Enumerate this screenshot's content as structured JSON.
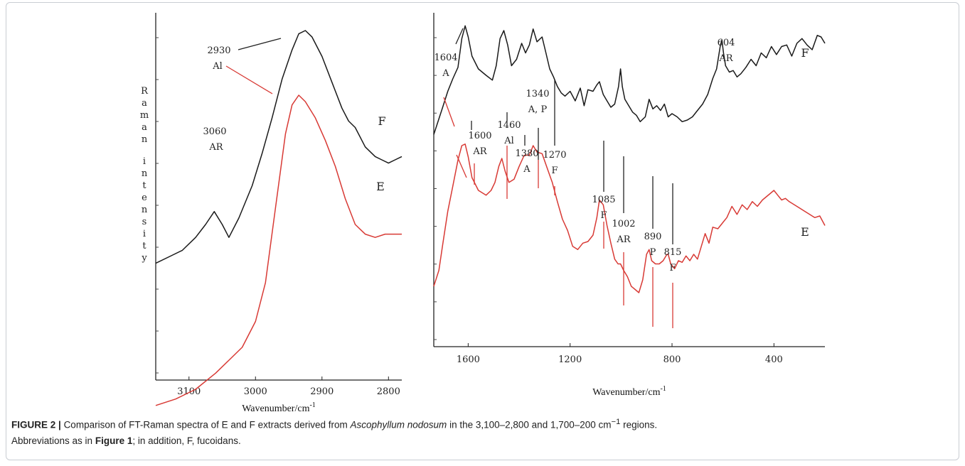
{
  "chart_data": [
    {
      "type": "line",
      "xlabel": "Wavenumber/cm",
      "xlabel_superscript": "-1",
      "ylabel": "Raman intensity",
      "xlim": [
        3150,
        2780
      ],
      "xticks": [
        "3100",
        "3000",
        "2900",
        "2800"
      ],
      "xtick_values": [
        3100,
        3000,
        2900,
        2800
      ],
      "series": [
        {
          "name": "F",
          "color": "#1a1a1a",
          "x": [
            3150,
            3130,
            3110,
            3090,
            3075,
            3062,
            3050,
            3040,
            3025,
            3005,
            2990,
            2975,
            2960,
            2945,
            2935,
            2925,
            2915,
            2900,
            2885,
            2870,
            2860,
            2850,
            2835,
            2820,
            2810,
            2800,
            2790,
            2780
          ],
          "y": [
            28,
            30,
            32,
            36,
            40,
            44,
            40,
            36,
            42,
            52,
            62,
            73,
            85,
            94,
            99,
            100,
            98,
            92,
            84,
            76,
            72,
            70,
            64,
            61,
            60,
            59,
            60,
            61
          ]
        },
        {
          "name": "E",
          "color": "#d83a35",
          "x": [
            3150,
            3120,
            3090,
            3060,
            3040,
            3020,
            3000,
            2985,
            2970,
            2955,
            2945,
            2935,
            2925,
            2910,
            2895,
            2880,
            2865,
            2850,
            2835,
            2820,
            2805,
            2790,
            2780
          ],
          "y": [
            -16,
            -14,
            -11,
            -6,
            -2,
            2,
            10,
            22,
            45,
            68,
            77,
            80,
            78,
            73,
            66,
            58,
            48,
            40,
            37,
            36,
            37,
            37,
            37
          ]
        }
      ],
      "annotations": [
        {
          "label": "2930",
          "sub": "Al"
        },
        {
          "label": "3060",
          "sub": "AR"
        },
        {
          "label": "F"
        },
        {
          "label": "E"
        }
      ]
    },
    {
      "type": "line",
      "xlabel": "Wavenumber/cm",
      "xlabel_superscript": "-1",
      "ylabel": "",
      "xlim": [
        1735,
        200
      ],
      "xticks": [
        "1600",
        "1200",
        "800",
        "400"
      ],
      "xtick_values": [
        1600,
        1200,
        800,
        400
      ],
      "series": [
        {
          "name": "F",
          "color": "#1a1a1a",
          "x": [
            1735,
            1700,
            1680,
            1660,
            1640,
            1625,
            1612,
            1600,
            1585,
            1560,
            1530,
            1505,
            1490,
            1475,
            1460,
            1445,
            1430,
            1410,
            1390,
            1375,
            1360,
            1345,
            1330,
            1310,
            1295,
            1280,
            1265,
            1250,
            1235,
            1220,
            1200,
            1180,
            1160,
            1145,
            1130,
            1110,
            1095,
            1085,
            1070,
            1055,
            1040,
            1025,
            1010,
            1002,
            995,
            985,
            970,
            955,
            940,
            925,
            905,
            890,
            875,
            860,
            845,
            830,
            815,
            800,
            780,
            760,
            740,
            720,
            700,
            680,
            660,
            640,
            625,
            610,
            604,
            598,
            590,
            575,
            560,
            545,
            530,
            510,
            490,
            470,
            450,
            430,
            410,
            390,
            370,
            350,
            330,
            310,
            290,
            270,
            250,
            230,
            215,
            200
          ],
          "y": [
            55,
            72,
            82,
            90,
            97,
            115,
            123,
            116,
            104,
            96,
            92,
            89,
            98,
            115,
            120,
            111,
            98,
            102,
            112,
            106,
            111,
            121,
            113,
            116,
            106,
            96,
            91,
            85,
            81,
            79,
            82,
            76,
            84,
            73,
            83,
            82,
            86,
            88,
            80,
            76,
            72,
            74,
            85,
            96,
            85,
            77,
            73,
            69,
            67,
            63,
            66,
            77,
            71,
            73,
            70,
            74,
            66,
            68,
            66,
            63,
            64,
            66,
            70,
            74,
            80,
            90,
            96,
            111,
            114,
            106,
            98,
            94,
            95,
            91,
            93,
            97,
            102,
            98,
            106,
            103,
            110,
            105,
            110,
            111,
            104,
            112,
            115,
            111,
            108,
            117,
            116,
            112
          ]
        },
        {
          "name": "E",
          "color": "#d83a35",
          "x": [
            1735,
            1715,
            1700,
            1680,
            1660,
            1640,
            1625,
            1612,
            1600,
            1585,
            1560,
            1530,
            1510,
            1495,
            1480,
            1468,
            1455,
            1440,
            1420,
            1400,
            1380,
            1360,
            1345,
            1330,
            1310,
            1290,
            1270,
            1250,
            1230,
            1210,
            1190,
            1170,
            1150,
            1130,
            1110,
            1095,
            1085,
            1070,
            1055,
            1040,
            1025,
            1012,
            1002,
            990,
            975,
            960,
            945,
            930,
            915,
            900,
            890,
            880,
            865,
            850,
            835,
            820,
            815,
            805,
            790,
            775,
            760,
            745,
            730,
            715,
            700,
            685,
            670,
            655,
            640,
            620,
            600,
            585,
            565,
            545,
            525,
            505,
            485,
            465,
            445,
            430,
            415,
            400,
            385,
            370,
            355,
            340,
            320,
            300,
            280,
            260,
            240,
            220,
            200
          ],
          "y": [
            -40,
            -30,
            -14,
            7,
            23,
            39,
            48,
            49,
            41,
            28,
            20,
            17,
            20,
            25,
            35,
            40,
            32,
            25,
            27,
            35,
            42,
            42,
            48,
            44,
            43,
            34,
            25,
            13,
            2,
            -5,
            -15,
            -17,
            -13,
            -12,
            -8,
            3,
            14,
            11,
            -2,
            -13,
            -23,
            -26,
            -26,
            -30,
            -34,
            -40,
            -42,
            -44,
            -36,
            -20,
            -17,
            -24,
            -26,
            -26,
            -24,
            -20,
            -20,
            -26,
            -29,
            -24,
            -25,
            -21,
            -24,
            -20,
            -23,
            -15,
            -7,
            -13,
            -3,
            -4,
            0,
            3,
            10,
            5,
            11,
            8,
            13,
            10,
            14,
            16,
            18,
            20,
            17,
            14,
            15,
            13,
            11,
            9,
            7,
            5,
            3,
            4,
            -2
          ]
        }
      ],
      "annotations": [
        {
          "label": "1604",
          "sub": "A"
        },
        {
          "label": "1600",
          "sub": "AR"
        },
        {
          "label": "1460",
          "sub": "Al"
        },
        {
          "label": "1380",
          "sub": "A"
        },
        {
          "label": "1340",
          "sub": "A, P"
        },
        {
          "label": "1270",
          "sub": "F"
        },
        {
          "label": "1085",
          "sub": "F"
        },
        {
          "label": "1002",
          "sub": "AR"
        },
        {
          "label": "890",
          "sub": "P"
        },
        {
          "label": "815",
          "sub": "F"
        },
        {
          "label": "604",
          "sub": "AR"
        },
        {
          "label": "F"
        },
        {
          "label": "E"
        }
      ]
    }
  ],
  "caption": {
    "label": "FIGURE 2 |",
    "text1": "Comparison of FT-Raman spectra of E and F extracts derived from",
    "species": "Ascophyllum nodosum",
    "text2": "in the 3,100–2,800 and 1,700–200 cm",
    "sup": "−1",
    "text3": "regions.",
    "line2a": "Abbreviations as in",
    "line2ref": "Figure 1",
    "line2b": "; in addition, F, fucoidans."
  }
}
